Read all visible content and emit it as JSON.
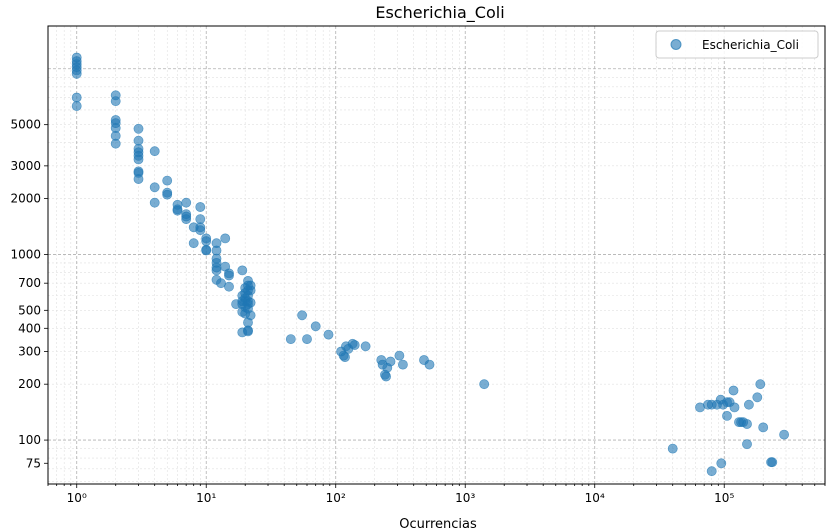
{
  "chart_data": {
    "type": "scatter",
    "title": "Escherichia_Coli",
    "xlabel": "Ocurrencias",
    "ylabel": "",
    "xscale": "log",
    "yscale": "log",
    "xlim": [
      0.6,
      600000
    ],
    "ylim": [
      58,
      17000
    ],
    "grid": true,
    "legend_position": "top-right",
    "colors": {
      "marker": "#1f77b4"
    },
    "x_ticks": [
      {
        "value": 1,
        "label": "10⁰"
      },
      {
        "value": 10,
        "label": "10¹"
      },
      {
        "value": 100,
        "label": "10²"
      },
      {
        "value": 1000,
        "label": "10³"
      },
      {
        "value": 10000,
        "label": "10⁴"
      },
      {
        "value": 100000,
        "label": "10⁵"
      }
    ],
    "y_ticks": [
      {
        "value": 75,
        "label": "75"
      },
      {
        "value": 100,
        "label": "100"
      },
      {
        "value": 200,
        "label": "200"
      },
      {
        "value": 300,
        "label": "300"
      },
      {
        "value": 400,
        "label": "400"
      },
      {
        "value": 500,
        "label": "500"
      },
      {
        "value": 700,
        "label": "700"
      },
      {
        "value": 1000,
        "label": "1000"
      },
      {
        "value": 2000,
        "label": "2000"
      },
      {
        "value": 3000,
        "label": "3000"
      },
      {
        "value": 5000,
        "label": "5000"
      }
    ],
    "series": [
      {
        "name": "Escherichia_Coli",
        "points": [
          [
            1,
            11500
          ],
          [
            1,
            11000
          ],
          [
            1,
            10600
          ],
          [
            1,
            10200
          ],
          [
            1,
            9800
          ],
          [
            1,
            9400
          ],
          [
            1,
            7000
          ],
          [
            1,
            6300
          ],
          [
            2,
            7200
          ],
          [
            2,
            6700
          ],
          [
            2,
            5300
          ],
          [
            2,
            5100
          ],
          [
            2,
            4800
          ],
          [
            2,
            4350
          ],
          [
            2,
            3950
          ],
          [
            3,
            4750
          ],
          [
            3,
            4100
          ],
          [
            3,
            3700
          ],
          [
            3,
            3550
          ],
          [
            3,
            3400
          ],
          [
            3,
            3250
          ],
          [
            3,
            2800
          ],
          [
            3,
            2750
          ],
          [
            3,
            2550
          ],
          [
            4,
            3600
          ],
          [
            4,
            2300
          ],
          [
            4,
            1900
          ],
          [
            5,
            2500
          ],
          [
            5,
            2150
          ],
          [
            5,
            2100
          ],
          [
            6,
            1850
          ],
          [
            6,
            1750
          ],
          [
            6,
            1720
          ],
          [
            7,
            1900
          ],
          [
            7,
            1650
          ],
          [
            7,
            1600
          ],
          [
            7,
            1550
          ],
          [
            8,
            1400
          ],
          [
            8,
            1150
          ],
          [
            9,
            1800
          ],
          [
            9,
            1550
          ],
          [
            9,
            1400
          ],
          [
            9,
            1350
          ],
          [
            10,
            1220
          ],
          [
            10,
            1180
          ],
          [
            10,
            1060
          ],
          [
            10,
            1050
          ],
          [
            12,
            1150
          ],
          [
            12,
            1050
          ],
          [
            12,
            950
          ],
          [
            12,
            900
          ],
          [
            12,
            850
          ],
          [
            12,
            820
          ],
          [
            12,
            730
          ],
          [
            13,
            700
          ],
          [
            14,
            1220
          ],
          [
            14,
            860
          ],
          [
            15,
            790
          ],
          [
            15,
            770
          ],
          [
            15,
            670
          ],
          [
            17,
            540
          ],
          [
            19,
            820
          ],
          [
            19,
            600
          ],
          [
            19,
            560
          ],
          [
            19,
            540
          ],
          [
            19,
            490
          ],
          [
            19,
            380
          ],
          [
            20,
            660
          ],
          [
            20,
            620
          ],
          [
            20,
            580
          ],
          [
            20,
            560
          ],
          [
            20,
            520
          ],
          [
            20,
            480
          ],
          [
            21,
            720
          ],
          [
            21,
            680
          ],
          [
            21,
            640
          ],
          [
            21,
            600
          ],
          [
            21,
            560
          ],
          [
            21,
            540
          ],
          [
            21,
            510
          ],
          [
            21,
            430
          ],
          [
            21,
            390
          ],
          [
            21,
            385
          ],
          [
            22,
            680
          ],
          [
            22,
            640
          ],
          [
            22,
            550
          ],
          [
            22,
            470
          ],
          [
            45,
            350
          ],
          [
            55,
            470
          ],
          [
            60,
            350
          ],
          [
            70,
            410
          ],
          [
            88,
            370
          ],
          [
            110,
            300
          ],
          [
            115,
            285
          ],
          [
            118,
            280
          ],
          [
            120,
            320
          ],
          [
            125,
            310
          ],
          [
            135,
            330
          ],
          [
            140,
            325
          ],
          [
            170,
            320
          ],
          [
            225,
            270
          ],
          [
            230,
            255
          ],
          [
            240,
            225
          ],
          [
            245,
            220
          ],
          [
            250,
            245
          ],
          [
            265,
            265
          ],
          [
            310,
            285
          ],
          [
            330,
            255
          ],
          [
            480,
            270
          ],
          [
            530,
            255
          ],
          [
            1400,
            200
          ],
          [
            40000,
            90
          ],
          [
            65000,
            150
          ],
          [
            75000,
            155
          ],
          [
            80000,
            155
          ],
          [
            80000,
            68
          ],
          [
            88000,
            155
          ],
          [
            94000,
            165
          ],
          [
            95000,
            75
          ],
          [
            98000,
            155
          ],
          [
            105000,
            135
          ],
          [
            105000,
            160
          ],
          [
            110000,
            160
          ],
          [
            118000,
            185
          ],
          [
            120000,
            150
          ],
          [
            130000,
            125
          ],
          [
            135000,
            125
          ],
          [
            140000,
            125
          ],
          [
            150000,
            95
          ],
          [
            150000,
            122
          ],
          [
            155000,
            155
          ],
          [
            180000,
            170
          ],
          [
            190000,
            200
          ],
          [
            200000,
            117
          ],
          [
            230000,
            76
          ],
          [
            235000,
            76
          ],
          [
            290000,
            107
          ]
        ]
      }
    ]
  }
}
